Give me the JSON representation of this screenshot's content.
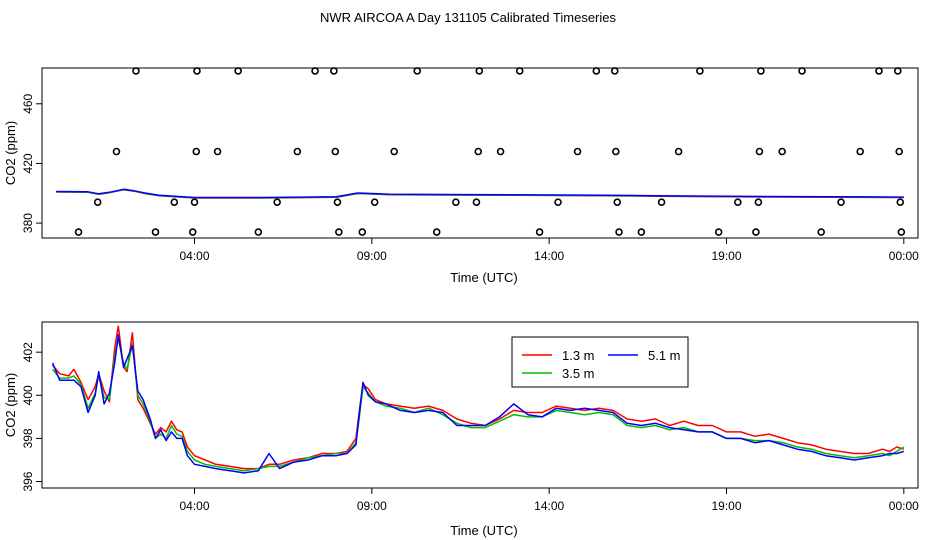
{
  "title": "NWR AIRCOA A  Day 131105  Calibrated Timeseries",
  "chart_data": [
    {
      "type": "scatter",
      "xlabel": "Time (UTC)",
      "ylabel": "CO2 (ppm)",
      "x_ticks": [
        "04:00",
        "09:00",
        "14:00",
        "19:00",
        "00:00"
      ],
      "y_ticks": [
        380,
        420,
        460
      ],
      "xlim_hours": [
        -0.3,
        24.4
      ],
      "ylim": [
        370,
        484
      ],
      "points": [
        {
          "t": 0.73,
          "y": 374
        },
        {
          "t": 1.27,
          "y": 394
        },
        {
          "t": 1.8,
          "y": 428
        },
        {
          "t": 2.35,
          "y": 482
        },
        {
          "t": 2.9,
          "y": 374
        },
        {
          "t": 3.43,
          "y": 394
        },
        {
          "t": 3.95,
          "y": 374
        },
        {
          "t": 4.0,
          "y": 394
        },
        {
          "t": 4.05,
          "y": 428
        },
        {
          "t": 4.07,
          "y": 482
        },
        {
          "t": 4.65,
          "y": 428
        },
        {
          "t": 5.23,
          "y": 482
        },
        {
          "t": 5.8,
          "y": 374
        },
        {
          "t": 6.33,
          "y": 394
        },
        {
          "t": 6.9,
          "y": 428
        },
        {
          "t": 7.4,
          "y": 482
        },
        {
          "t": 7.93,
          "y": 482
        },
        {
          "t": 7.97,
          "y": 428
        },
        {
          "t": 8.03,
          "y": 394
        },
        {
          "t": 8.07,
          "y": 374
        },
        {
          "t": 8.73,
          "y": 374
        },
        {
          "t": 9.08,
          "y": 394
        },
        {
          "t": 9.63,
          "y": 428
        },
        {
          "t": 10.28,
          "y": 482
        },
        {
          "t": 10.83,
          "y": 374
        },
        {
          "t": 11.37,
          "y": 394
        },
        {
          "t": 11.95,
          "y": 394
        },
        {
          "t": 12.0,
          "y": 428
        },
        {
          "t": 12.03,
          "y": 482
        },
        {
          "t": 12.63,
          "y": 428
        },
        {
          "t": 13.17,
          "y": 482
        },
        {
          "t": 13.73,
          "y": 374
        },
        {
          "t": 14.25,
          "y": 394
        },
        {
          "t": 14.8,
          "y": 428
        },
        {
          "t": 15.33,
          "y": 482
        },
        {
          "t": 15.85,
          "y": 482
        },
        {
          "t": 15.88,
          "y": 428
        },
        {
          "t": 15.92,
          "y": 394
        },
        {
          "t": 15.97,
          "y": 374
        },
        {
          "t": 16.6,
          "y": 374
        },
        {
          "t": 17.17,
          "y": 394
        },
        {
          "t": 17.65,
          "y": 428
        },
        {
          "t": 18.25,
          "y": 482
        },
        {
          "t": 18.78,
          "y": 374
        },
        {
          "t": 19.32,
          "y": 394
        },
        {
          "t": 19.83,
          "y": 374
        },
        {
          "t": 19.9,
          "y": 394
        },
        {
          "t": 19.93,
          "y": 428
        },
        {
          "t": 19.97,
          "y": 482
        },
        {
          "t": 20.57,
          "y": 428
        },
        {
          "t": 21.13,
          "y": 482
        },
        {
          "t": 21.67,
          "y": 374
        },
        {
          "t": 22.23,
          "y": 394
        },
        {
          "t": 22.77,
          "y": 428
        },
        {
          "t": 23.3,
          "y": 482
        },
        {
          "t": 23.83,
          "y": 482
        },
        {
          "t": 23.87,
          "y": 428
        },
        {
          "t": 23.9,
          "y": 394
        },
        {
          "t": 23.93,
          "y": 374
        }
      ],
      "lines": [
        {
          "t": [
            0.1,
            1.0,
            1.3,
            1.6,
            2.0,
            2.3,
            2.6,
            3.0,
            4.0,
            6.0,
            8.0,
            8.6,
            9.5,
            11.0,
            13.0,
            15.0,
            17.0,
            19.0,
            21.0,
            23.0,
            24.0
          ],
          "y": [
            401,
            400.8,
            399.5,
            400.5,
            402.5,
            401.5,
            400,
            398.5,
            397,
            397,
            397.5,
            400,
            399.2,
            399,
            398.8,
            398.6,
            398.2,
            397.8,
            397.6,
            397.4,
            397.3
          ]
        }
      ],
      "line_colors": [
        "#ff0000",
        "#00c000",
        "#0000ff"
      ]
    },
    {
      "type": "line",
      "xlabel": "Time (UTC)",
      "ylabel": "CO2 (ppm)",
      "x_ticks": [
        "04:00",
        "09:00",
        "14:00",
        "19:00",
        "00:00"
      ],
      "y_ticks": [
        396,
        398,
        400,
        402
      ],
      "xlim_hours": [
        -0.3,
        24.4
      ],
      "ylim": [
        395.7,
        403.4
      ],
      "legend_position": "top-right",
      "series": [
        {
          "name": "1.3 m",
          "color": "#ff0000",
          "t": [
            0.0,
            0.2,
            0.45,
            0.6,
            0.8,
            1.0,
            1.2,
            1.3,
            1.45,
            1.6,
            1.75,
            1.85,
            2.0,
            2.1,
            2.25,
            2.4,
            2.55,
            2.75,
            2.9,
            3.05,
            3.2,
            3.35,
            3.5,
            3.65,
            3.8,
            4.0,
            4.3,
            4.6,
            5.0,
            5.4,
            5.8,
            6.1,
            6.4,
            6.8,
            7.2,
            7.6,
            8.0,
            8.3,
            8.55,
            8.65,
            8.75,
            8.9,
            9.1,
            9.4,
            9.8,
            10.2,
            10.6,
            11.0,
            11.4,
            11.8,
            12.2,
            12.6,
            13.0,
            13.4,
            13.8,
            14.2,
            14.6,
            15.0,
            15.4,
            15.8,
            16.2,
            16.6,
            17.0,
            17.4,
            17.8,
            18.2,
            18.6,
            19.0,
            19.4,
            19.8,
            20.2,
            20.6,
            21.0,
            21.4,
            21.8,
            22.2,
            22.6,
            23.0,
            23.4,
            23.6,
            23.8,
            24.0
          ],
          "y": [
            401.4,
            401,
            400.9,
            401.2,
            400.6,
            399.8,
            400.4,
            401,
            400.2,
            399.7,
            402.2,
            403.2,
            401.3,
            401.1,
            402.9,
            399.8,
            399.4,
            398.7,
            398.2,
            398.5,
            398.3,
            398.8,
            398.4,
            398.3,
            397.6,
            397.2,
            397.0,
            396.8,
            396.7,
            396.6,
            396.6,
            396.8,
            396.8,
            397.0,
            397.1,
            397.3,
            397.3,
            397.4,
            398.0,
            399.3,
            400.5,
            400.3,
            399.8,
            399.6,
            399.5,
            399.4,
            399.5,
            399.3,
            398.9,
            398.7,
            398.6,
            398.9,
            399.3,
            399.2,
            399.2,
            399.5,
            399.4,
            399.3,
            399.4,
            399.3,
            398.9,
            398.8,
            398.9,
            398.6,
            398.8,
            398.6,
            398.6,
            398.3,
            398.3,
            398.1,
            398.2,
            398.0,
            397.8,
            397.7,
            397.5,
            397.4,
            397.3,
            397.3,
            397.5,
            397.4,
            397.6,
            397.5
          ]
        },
        {
          "name": "3.5 m",
          "color": "#00c000",
          "t": [
            0.0,
            0.2,
            0.45,
            0.6,
            0.8,
            1.0,
            1.2,
            1.3,
            1.45,
            1.6,
            1.75,
            1.85,
            2.0,
            2.1,
            2.25,
            2.4,
            2.55,
            2.75,
            2.9,
            3.05,
            3.2,
            3.35,
            3.5,
            3.65,
            3.8,
            4.0,
            4.3,
            4.6,
            5.0,
            5.4,
            5.8,
            6.1,
            6.4,
            6.8,
            7.2,
            7.6,
            8.0,
            8.3,
            8.55,
            8.65,
            8.75,
            8.9,
            9.1,
            9.4,
            9.8,
            10.2,
            10.6,
            11.0,
            11.4,
            11.8,
            12.2,
            12.6,
            13.0,
            13.4,
            13.8,
            14.2,
            14.6,
            15.0,
            15.4,
            15.8,
            16.2,
            16.6,
            17.0,
            17.4,
            17.8,
            18.2,
            18.6,
            19.0,
            19.4,
            19.8,
            20.2,
            20.6,
            21.0,
            21.4,
            21.8,
            22.2,
            22.6,
            23.0,
            23.4,
            23.6,
            23.8,
            24.0
          ],
          "y": [
            401.2,
            400.8,
            400.8,
            400.9,
            400.5,
            399.4,
            400.1,
            400.9,
            399.9,
            399.8,
            401.8,
            402.6,
            401.5,
            401.2,
            402.4,
            400.0,
            399.6,
            398.8,
            398.0,
            398.2,
            398.0,
            398.6,
            398.2,
            398.1,
            397.4,
            397.0,
            396.8,
            396.7,
            396.6,
            396.5,
            396.6,
            396.7,
            396.7,
            396.9,
            397.1,
            397.2,
            397.3,
            397.3,
            397.8,
            399.0,
            400.4,
            400.1,
            399.7,
            399.5,
            399.4,
            399.2,
            399.4,
            399.1,
            398.7,
            398.5,
            398.5,
            398.8,
            399.1,
            399.0,
            399.0,
            399.3,
            399.2,
            399.1,
            399.2,
            399.1,
            398.6,
            398.5,
            398.6,
            398.4,
            398.5,
            398.3,
            398.3,
            398.0,
            398.0,
            397.9,
            397.9,
            397.8,
            397.6,
            397.5,
            397.3,
            397.2,
            397.1,
            397.2,
            397.3,
            397.2,
            397.4,
            397.6
          ]
        },
        {
          "name": "5.1 m",
          "color": "#0000ff",
          "t": [
            0.0,
            0.2,
            0.45,
            0.6,
            0.8,
            1.0,
            1.2,
            1.3,
            1.45,
            1.6,
            1.75,
            1.85,
            2.0,
            2.1,
            2.25,
            2.4,
            2.55,
            2.75,
            2.9,
            3.05,
            3.2,
            3.35,
            3.5,
            3.65,
            3.8,
            4.0,
            4.3,
            4.6,
            5.0,
            5.4,
            5.8,
            6.1,
            6.4,
            6.8,
            7.2,
            7.6,
            8.0,
            8.3,
            8.55,
            8.65,
            8.75,
            8.9,
            9.1,
            9.4,
            9.8,
            10.2,
            10.6,
            11.0,
            11.4,
            11.8,
            12.2,
            12.6,
            13.0,
            13.4,
            13.8,
            14.2,
            14.6,
            15.0,
            15.4,
            15.8,
            16.2,
            16.6,
            17.0,
            17.4,
            17.8,
            18.2,
            18.6,
            19.0,
            19.4,
            19.8,
            20.2,
            20.6,
            21.0,
            21.4,
            21.8,
            22.2,
            22.6,
            23.0,
            23.4,
            23.6,
            23.8,
            24.0
          ],
          "y": [
            401.5,
            400.7,
            400.7,
            400.7,
            400.4,
            399.2,
            400.0,
            401.1,
            399.6,
            400.1,
            401.5,
            402.8,
            401.3,
            401.7,
            402.3,
            400.2,
            399.8,
            398.9,
            398.0,
            398.4,
            397.9,
            398.3,
            398.0,
            398.0,
            397.2,
            396.8,
            396.7,
            396.6,
            396.5,
            396.4,
            396.5,
            397.3,
            396.6,
            396.9,
            397.0,
            397.2,
            397.2,
            397.3,
            397.7,
            399.2,
            400.6,
            400.0,
            399.7,
            399.6,
            399.3,
            399.2,
            399.3,
            399.2,
            398.6,
            398.6,
            398.6,
            399.0,
            399.6,
            399.1,
            399.0,
            399.4,
            399.3,
            399.4,
            399.3,
            399.2,
            398.7,
            398.6,
            398.7,
            398.5,
            398.4,
            398.3,
            398.3,
            398.0,
            398.0,
            397.8,
            397.9,
            397.7,
            397.5,
            397.4,
            397.2,
            397.1,
            397.0,
            397.1,
            397.2,
            397.3,
            397.3,
            397.4
          ]
        }
      ]
    }
  ]
}
